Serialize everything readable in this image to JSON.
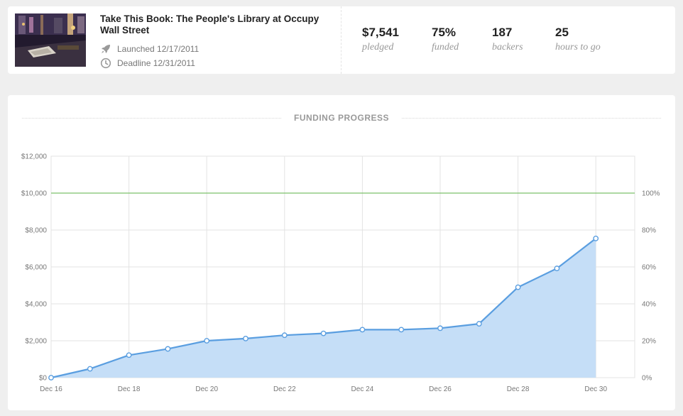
{
  "project": {
    "title": "Take This Book: The People's Library at Occupy Wall Street",
    "launched": "Launched 12/17/2011",
    "deadline": "Deadline 12/31/2011"
  },
  "stats": [
    {
      "value": "$7,541",
      "label": "pledged"
    },
    {
      "value": "75%",
      "label": "funded"
    },
    {
      "value": "187",
      "label": "backers"
    },
    {
      "value": "25",
      "label": "hours to go"
    }
  ],
  "chart_heading": "FUNDING PROGRESS",
  "colors": {
    "line": "#5a9ee0",
    "area": "#c5def7",
    "goal": "#7cc16a",
    "grid": "#e3e3e3",
    "background": "#efefef"
  },
  "icons": {
    "launched": "rocket-icon",
    "deadline": "clock-icon"
  },
  "chart_data": {
    "type": "area",
    "title": "FUNDING PROGRESS",
    "x": [
      "Dec 16",
      "Dec 17",
      "Dec 18",
      "Dec 19",
      "Dec 20",
      "Dec 21",
      "Dec 22",
      "Dec 23",
      "Dec 24",
      "Dec 25",
      "Dec 26",
      "Dec 27",
      "Dec 28",
      "Dec 29",
      "Dec 30"
    ],
    "series": [
      {
        "values": [
          0,
          480,
          1220,
          1560,
          2000,
          2120,
          2300,
          2400,
          2600,
          2600,
          2680,
          2920,
          4900,
          5920,
          7541
        ]
      }
    ],
    "x_tick_labels": [
      "Dec 16",
      "Dec 18",
      "Dec 20",
      "Dec 22",
      "Dec 24",
      "Dec 26",
      "Dec 28",
      "Dec 30"
    ],
    "y_tick_labels_left": [
      "$0",
      "$2,000",
      "$4,000",
      "$6,000",
      "$8,000",
      "$10,000",
      "$12,000"
    ],
    "y_tick_labels_right": [
      "0%",
      "20%",
      "40%",
      "60%",
      "80%",
      "100%"
    ],
    "ylim": [
      0,
      12000
    ],
    "goal": 10000,
    "grid": true
  }
}
